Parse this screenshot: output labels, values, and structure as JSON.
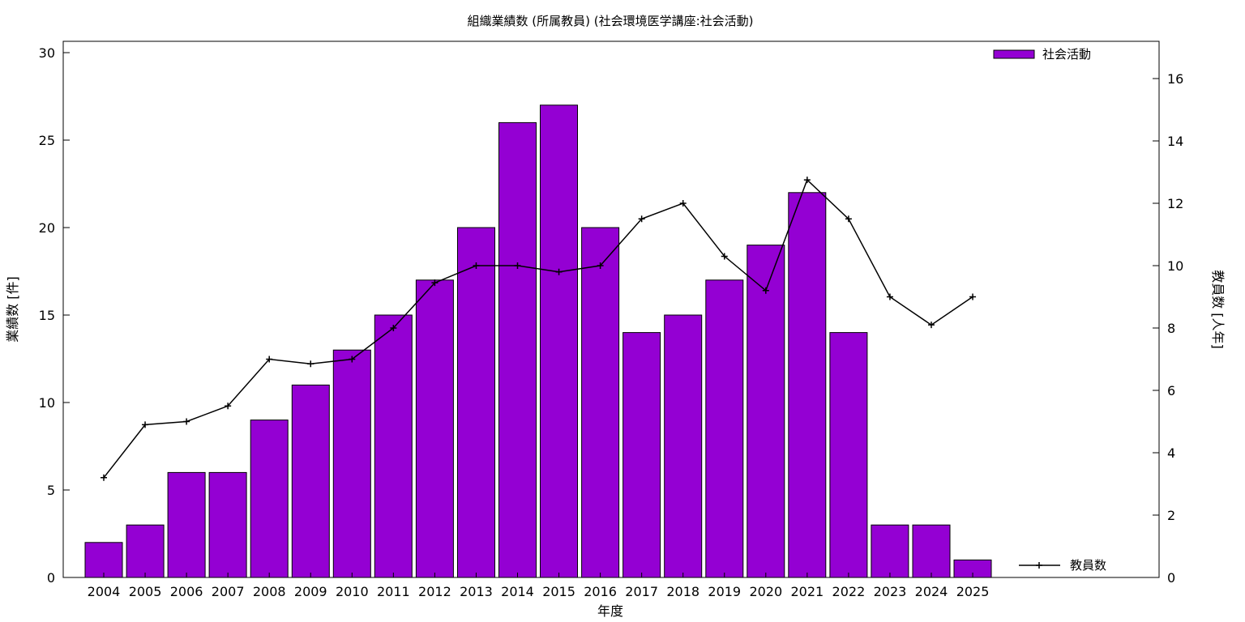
{
  "chart_data": {
    "type": "bar",
    "title": "組織業績数 (所属教員) (社会環境医学講座:社会活動)",
    "xlabel": "年度",
    "ylabel": "業績数 [件]",
    "y2label": "教員数 [人年]",
    "categories": [
      "2004",
      "2005",
      "2006",
      "2007",
      "2008",
      "2009",
      "2010",
      "2011",
      "2012",
      "2013",
      "2014",
      "2015",
      "2016",
      "2017",
      "2018",
      "2019",
      "2020",
      "2021",
      "2022",
      "2023",
      "2024",
      "2025"
    ],
    "ylim": [
      0,
      30
    ],
    "y2lim": [
      0,
      17.2
    ],
    "yticks": [
      0,
      5,
      10,
      15,
      20,
      25,
      30
    ],
    "y2ticks": [
      0,
      2,
      4,
      6,
      8,
      10,
      12,
      14,
      16
    ],
    "legend_position": "right",
    "series": [
      {
        "name": "社会活動",
        "type": "bar",
        "axis": "left",
        "color": "#9400d3",
        "values": [
          2,
          3,
          6,
          6,
          9,
          11,
          13,
          15,
          17,
          20,
          26,
          27,
          20,
          14,
          15,
          17,
          19,
          22,
          14,
          3,
          3,
          1
        ]
      },
      {
        "name": "教員数",
        "type": "line",
        "axis": "right",
        "color": "#000000",
        "values": [
          3.2,
          4.9,
          5.0,
          5.5,
          7.0,
          6.85,
          7.0,
          8.0,
          9.45,
          10.0,
          10.0,
          9.8,
          10.0,
          11.5,
          12.0,
          10.3,
          9.2,
          12.75,
          11.5,
          9.0,
          8.1,
          9.0
        ]
      }
    ]
  }
}
